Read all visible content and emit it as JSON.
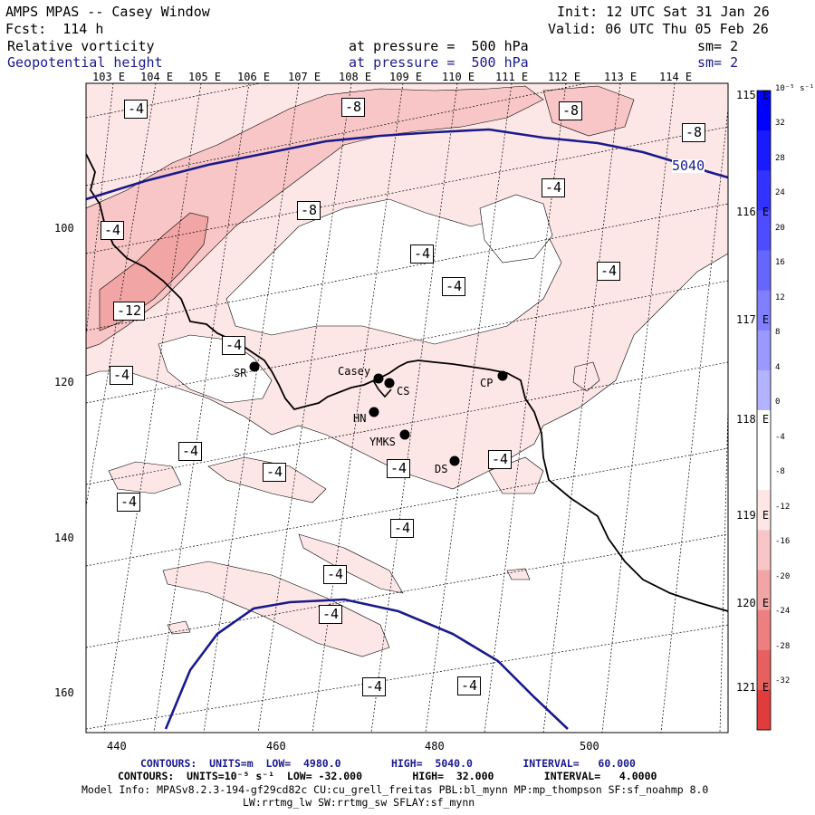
{
  "header": {
    "model": "AMPS MPAS -- Casey Window",
    "init": "Init: 12 UTC Sat 31 Jan 26",
    "fcst": "Fcst:  114 h",
    "valid": "Valid: 06 UTC Thu 05 Feb 26",
    "field1": "Relative vorticity",
    "field1_level": "at pressure =  500 hPa",
    "field1_sm": "sm= 2",
    "field2": "Geopotential height",
    "field2_level": "at pressure =  500 hPa",
    "field2_sm": "sm= 2"
  },
  "colors": {
    "height_contour": "#1a1a8c",
    "vort_neg_light": "#fde6e6",
    "vort_neg_mid": "#f8c6c6",
    "vort_neg_strong": "#f2a5a5",
    "coast": "#000000"
  },
  "map": {
    "top_lon_labels": [
      "103 E",
      "104 E",
      "105 E",
      "106 E",
      "107 E",
      "108 E",
      "109 E",
      "110 E",
      "111 E",
      "112 E",
      "113 E",
      "114 E"
    ],
    "right_lon_labels": [
      "115 E",
      "116 E",
      "117 E",
      "118 E",
      "119 E",
      "120 E",
      "121 E"
    ],
    "x_ticks": [
      "440",
      "460",
      "480",
      "500"
    ],
    "y_ticks": [
      "100",
      "120",
      "140",
      "160"
    ],
    "height_label": "5040",
    "vort_labels": [
      "-4",
      "-8",
      "-8",
      "-8",
      "-4",
      "-8",
      "-4",
      "-4",
      "-4",
      "-4",
      "-12",
      "-4",
      "-4",
      "-4",
      "-4",
      "-4",
      "-4",
      "-4",
      "-4",
      "-4",
      "-4",
      "-4",
      "-4",
      "-4"
    ],
    "stations": [
      "SR",
      "Casey",
      "CS",
      "HN",
      "YMKS",
      "DS",
      "CP"
    ]
  },
  "colorbar": {
    "units": "10⁻⁵ s⁻¹",
    "ticks": [
      "32",
      "28",
      "24",
      "20",
      "16",
      "12",
      "8",
      "4",
      "0",
      "-4",
      "-8",
      "-12",
      "-16",
      "-20",
      "-24",
      "-28",
      "-32"
    ]
  },
  "footer": {
    "contours1": "CONTOURS:  UNITS=m  LOW=  4980.0        HIGH=  5040.0        INTERVAL=   60.000",
    "contours2": "CONTOURS:  UNITS=10⁻⁵ s⁻¹  LOW= -32.000        HIGH=  32.000        INTERVAL=   4.0000",
    "model_info": "Model Info: MPASv8.2.3-194-gf29cd82c CU:cu_grell_freitas PBL:bl_mynn MP:mp_thompson SF:sf_noahmp 8.0",
    "model_info2": "LW:rrtmg_lw SW:rrtmg_sw SFLAY:sf_mynn"
  }
}
